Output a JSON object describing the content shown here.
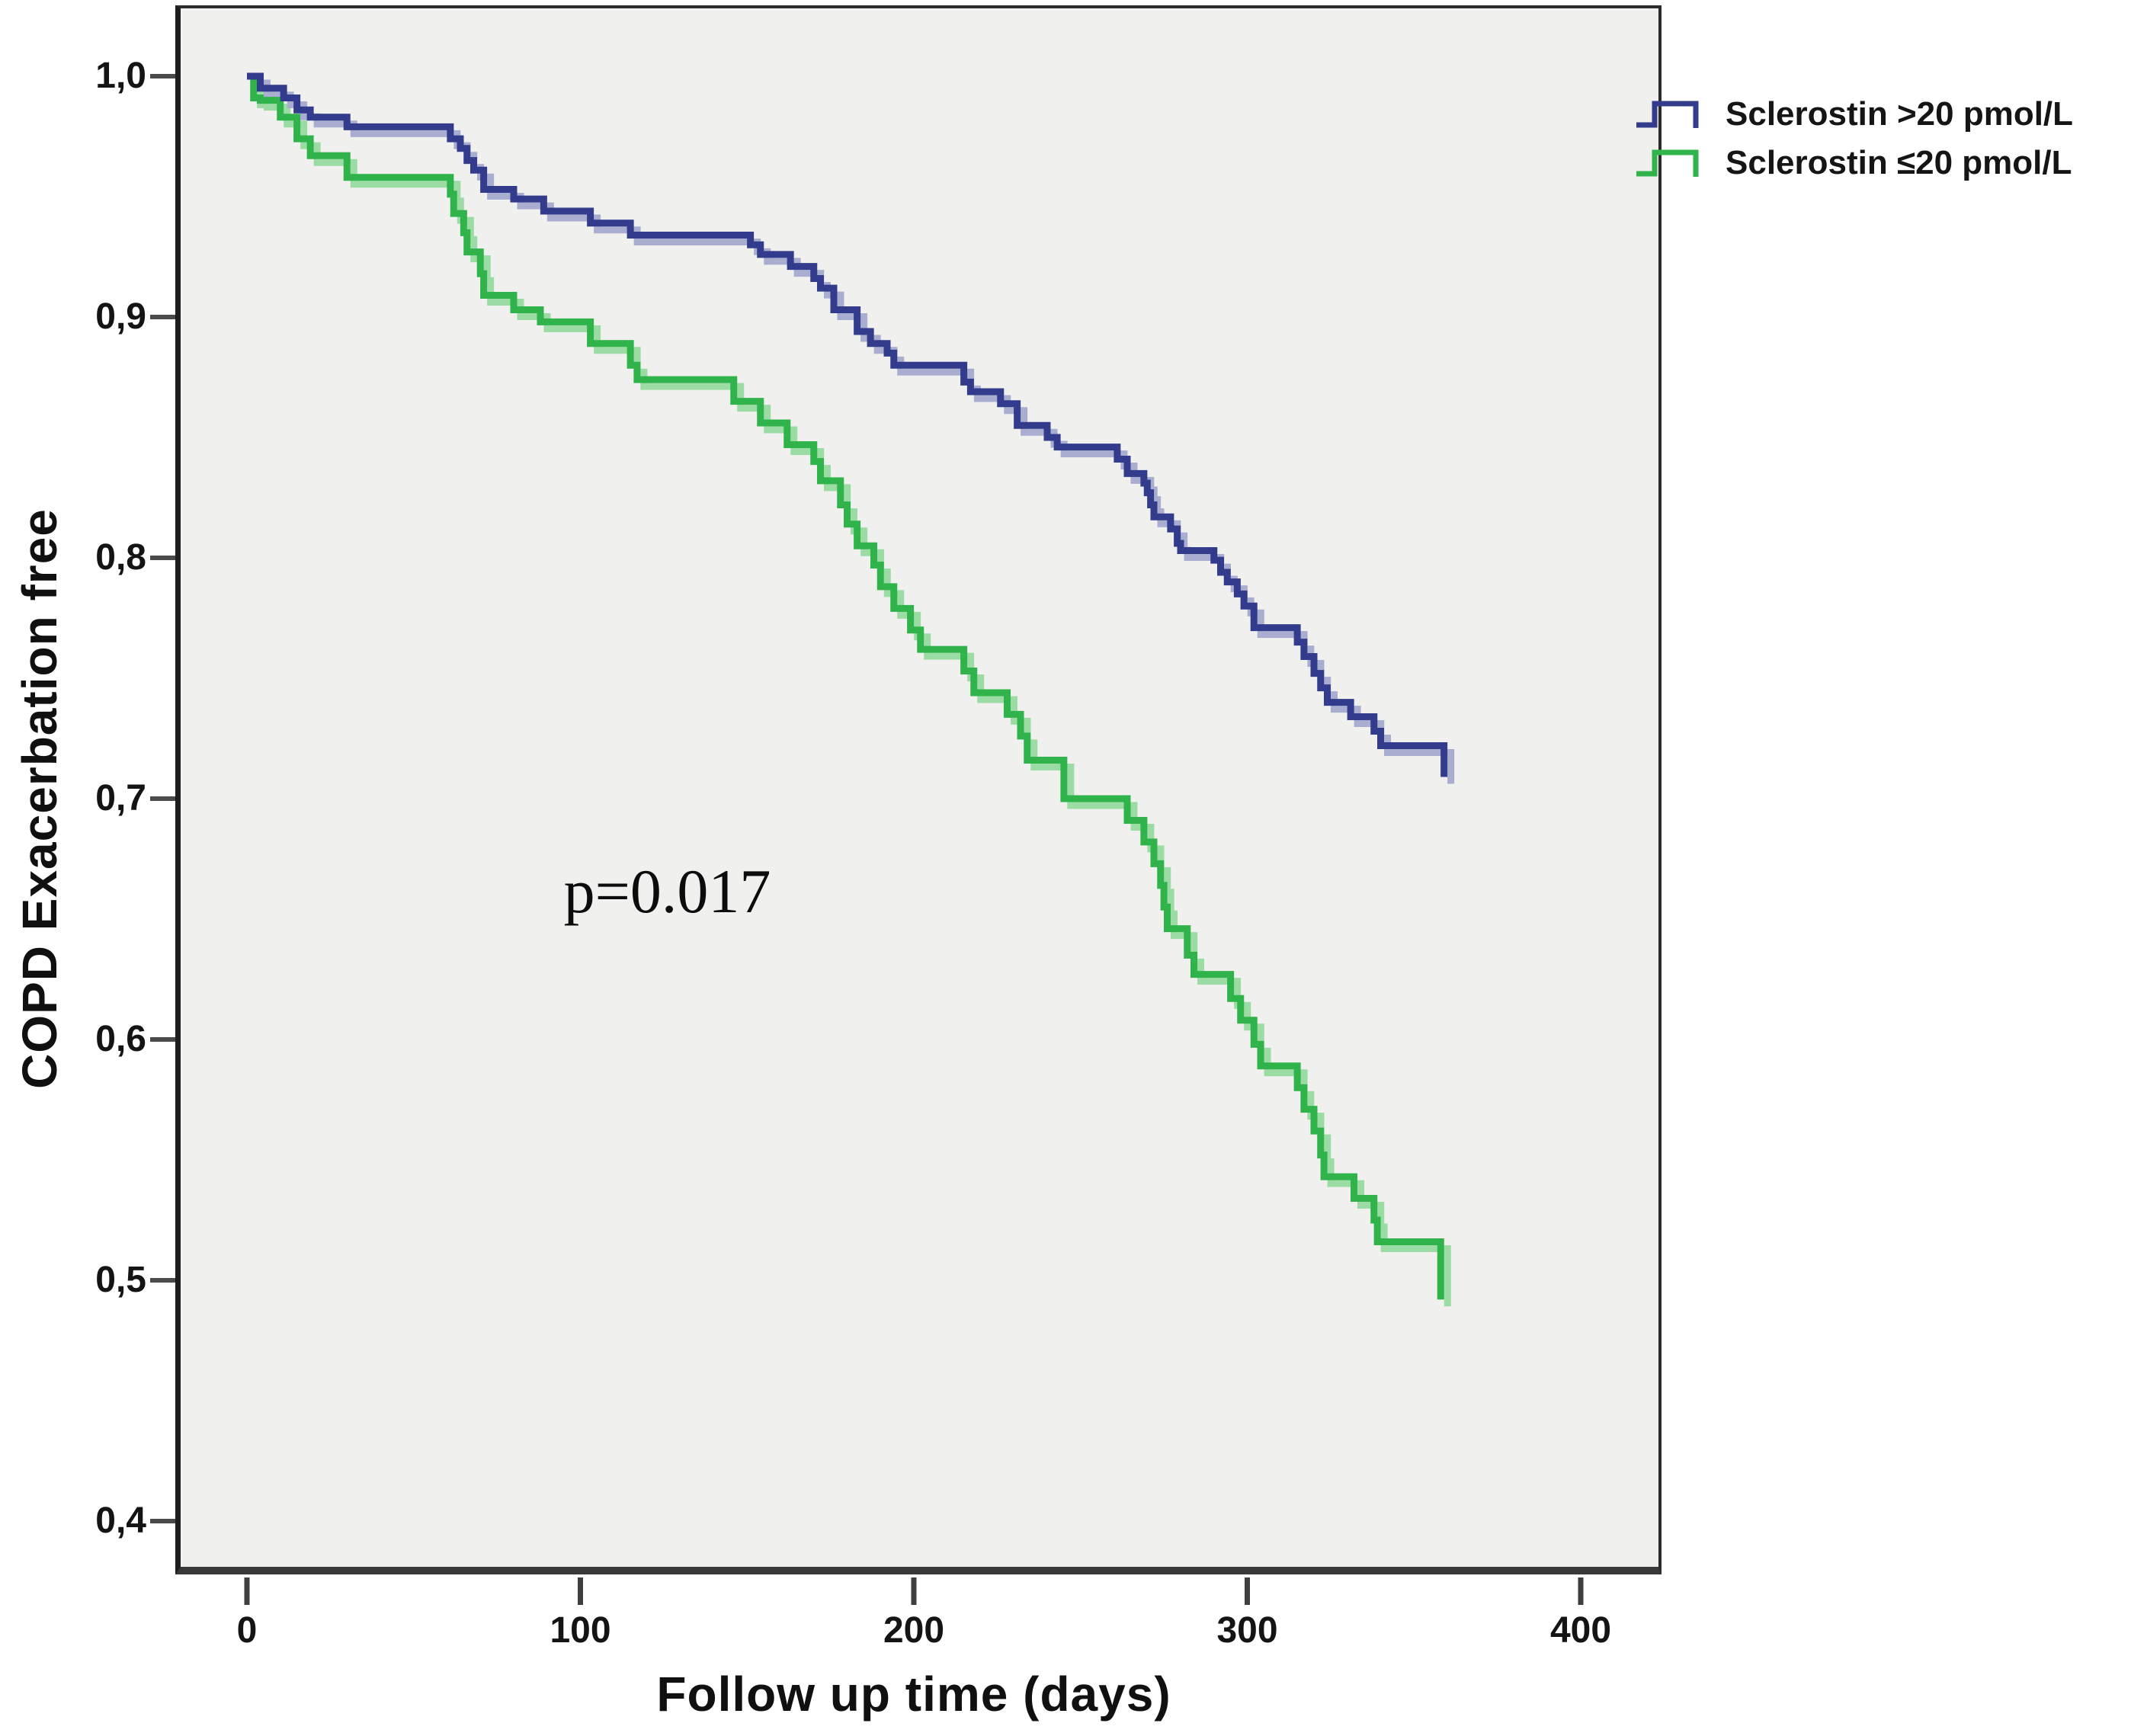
{
  "chart_data": {
    "type": "line",
    "subtype": "kaplan-meier-step",
    "title": "",
    "xlabel": "Follow up time (days)",
    "ylabel": "COPD Exacerbation free",
    "xlim": [
      -21,
      424
    ],
    "ylim": [
      0.378,
      1.03
    ],
    "grid": false,
    "plot_background": "#f0f0ee",
    "legend_position": "top-right-outside",
    "x_ticks": {
      "values": [
        0,
        100,
        200,
        300,
        400
      ],
      "labels": [
        "0",
        "100",
        "200",
        "300",
        "400"
      ]
    },
    "y_ticks": {
      "values": [
        1.0,
        0.9,
        0.8,
        0.7,
        0.6,
        0.5,
        0.4
      ],
      "labels": [
        "1,0",
        "0,9",
        "0,8",
        "0,7",
        "0,6",
        "0,5",
        "0,4"
      ]
    },
    "annotation": {
      "text": "p=0.017",
      "x_day": 95,
      "y_value": 0.662
    },
    "series": [
      {
        "name": "Sclerostin >20 pmol/L",
        "color": "#333b8c",
        "shadow_color": "#a9aed0",
        "points": [
          [
            0,
            1.0
          ],
          [
            4,
            0.995
          ],
          [
            11,
            0.991
          ],
          [
            15,
            0.986
          ],
          [
            19,
            0.983
          ],
          [
            30,
            0.979
          ],
          [
            61,
            0.974
          ],
          [
            64,
            0.97
          ],
          [
            66,
            0.965
          ],
          [
            68,
            0.961
          ],
          [
            71,
            0.953
          ],
          [
            80,
            0.949
          ],
          [
            89,
            0.944
          ],
          [
            103,
            0.939
          ],
          [
            115,
            0.934
          ],
          [
            151,
            0.93
          ],
          [
            154,
            0.926
          ],
          [
            163,
            0.921
          ],
          [
            170,
            0.916
          ],
          [
            172,
            0.912
          ],
          [
            176,
            0.903
          ],
          [
            183,
            0.894
          ],
          [
            187,
            0.889
          ],
          [
            192,
            0.885
          ],
          [
            194,
            0.88
          ],
          [
            215,
            0.873
          ],
          [
            217,
            0.869
          ],
          [
            226,
            0.864
          ],
          [
            231,
            0.855
          ],
          [
            240,
            0.85
          ],
          [
            243,
            0.846
          ],
          [
            261,
            0.841
          ],
          [
            264,
            0.835
          ],
          [
            269,
            0.831
          ],
          [
            270,
            0.827
          ],
          [
            271,
            0.822
          ],
          [
            272,
            0.817
          ],
          [
            277,
            0.812
          ],
          [
            279,
            0.806
          ],
          [
            280,
            0.803
          ],
          [
            290,
            0.799
          ],
          [
            292,
            0.794
          ],
          [
            294,
            0.79
          ],
          [
            297,
            0.785
          ],
          [
            299,
            0.78
          ],
          [
            302,
            0.771
          ],
          [
            315,
            0.765
          ],
          [
            317,
            0.759
          ],
          [
            320,
            0.752
          ],
          [
            322,
            0.746
          ],
          [
            324,
            0.74
          ],
          [
            331,
            0.734
          ],
          [
            338,
            0.728
          ],
          [
            340,
            0.722
          ],
          [
            359,
            0.709
          ]
        ]
      },
      {
        "name": "Sclerostin ≤20 pmol/L",
        "color": "#2fb34a",
        "shadow_color": "#9bdca4",
        "points": [
          [
            0,
            1.0
          ],
          [
            2,
            0.991
          ],
          [
            4,
            0.99
          ],
          [
            10,
            0.983
          ],
          [
            15,
            0.974
          ],
          [
            19,
            0.967
          ],
          [
            30,
            0.958
          ],
          [
            61,
            0.951
          ],
          [
            62,
            0.943
          ],
          [
            65,
            0.935
          ],
          [
            66,
            0.927
          ],
          [
            70,
            0.918
          ],
          [
            71,
            0.909
          ],
          [
            80,
            0.903
          ],
          [
            88,
            0.898
          ],
          [
            103,
            0.889
          ],
          [
            115,
            0.88
          ],
          [
            117,
            0.874
          ],
          [
            146,
            0.865
          ],
          [
            154,
            0.856
          ],
          [
            162,
            0.847
          ],
          [
            170,
            0.84
          ],
          [
            172,
            0.832
          ],
          [
            178,
            0.822
          ],
          [
            180,
            0.814
          ],
          [
            183,
            0.805
          ],
          [
            188,
            0.797
          ],
          [
            190,
            0.788
          ],
          [
            194,
            0.779
          ],
          [
            199,
            0.77
          ],
          [
            202,
            0.762
          ],
          [
            215,
            0.753
          ],
          [
            218,
            0.744
          ],
          [
            228,
            0.735
          ],
          [
            232,
            0.726
          ],
          [
            234,
            0.716
          ],
          [
            245,
            0.7
          ],
          [
            264,
            0.691
          ],
          [
            269,
            0.682
          ],
          [
            272,
            0.673
          ],
          [
            274,
            0.664
          ],
          [
            275,
            0.655
          ],
          [
            276,
            0.646
          ],
          [
            282,
            0.635
          ],
          [
            284,
            0.627
          ],
          [
            295,
            0.617
          ],
          [
            298,
            0.608
          ],
          [
            302,
            0.598
          ],
          [
            304,
            0.589
          ],
          [
            315,
            0.58
          ],
          [
            317,
            0.571
          ],
          [
            320,
            0.562
          ],
          [
            322,
            0.552
          ],
          [
            323,
            0.543
          ],
          [
            332,
            0.534
          ],
          [
            338,
            0.525
          ],
          [
            339,
            0.516
          ],
          [
            358,
            0.492
          ]
        ]
      }
    ]
  }
}
